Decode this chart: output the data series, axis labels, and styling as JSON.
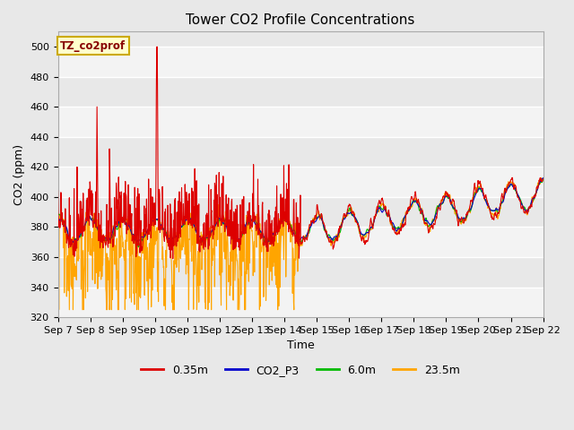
{
  "title": "Tower CO2 Profile Concentrations",
  "xlabel": "Time",
  "ylabel": "CO2 (ppm)",
  "ylim": [
    320,
    510
  ],
  "yticks": [
    320,
    340,
    360,
    380,
    400,
    420,
    440,
    460,
    480,
    500
  ],
  "xtick_labels": [
    "Sep 7",
    "Sep 8",
    "Sep 9",
    "Sep 10",
    "Sep 11",
    "Sep 12",
    "Sep 13",
    "Sep 14",
    "Sep 15",
    "Sep 16",
    "Sep 17",
    "Sep 18",
    "Sep 19",
    "Sep 20",
    "Sep 21",
    "Sep 22"
  ],
  "series": {
    "0.35m": {
      "color": "#DD0000",
      "linewidth": 0.8
    },
    "CO2_P3": {
      "color": "#0000CC",
      "linewidth": 0.8
    },
    "6.0m": {
      "color": "#00BB00",
      "linewidth": 0.8
    },
    "23.5m": {
      "color": "#FFA500",
      "linewidth": 0.8
    }
  },
  "legend_label": "TZ_co2prof",
  "legend_box_color": "#FFFFCC",
  "legend_box_border": "#CCAA00",
  "bg_color": "#E8E8E8",
  "grid_color": "#FFFFFF",
  "title_fontsize": 11,
  "label_fontsize": 9,
  "tick_fontsize": 8
}
